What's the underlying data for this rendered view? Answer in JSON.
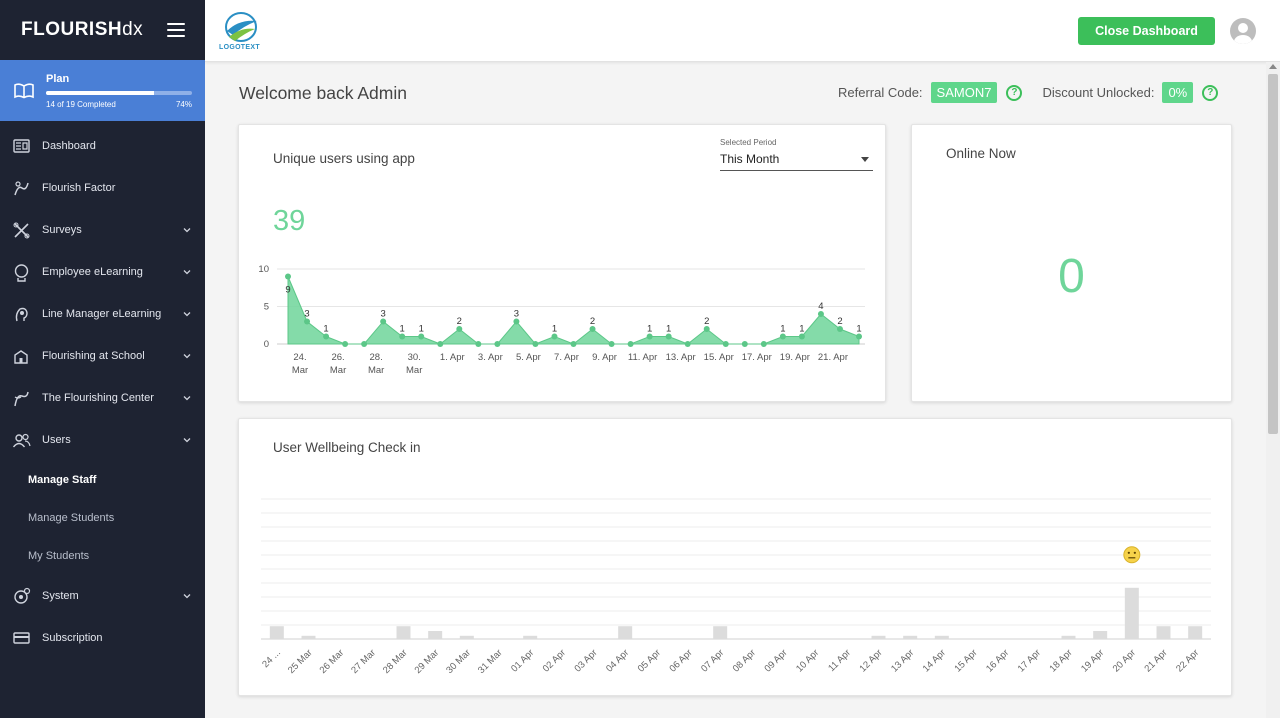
{
  "brand": {
    "name_bold": "FLOURISH",
    "name_light": "dx"
  },
  "plan": {
    "title": "Plan",
    "progress_text": "14 of 19 Completed",
    "percent_text": "74%",
    "percent": 74
  },
  "nav": {
    "items": [
      {
        "label": "Dashboard",
        "icon": "dashboard-icon",
        "expandable": false
      },
      {
        "label": "Flourish Factor",
        "icon": "flourish-icon",
        "expandable": false
      },
      {
        "label": "Surveys",
        "icon": "surveys-icon",
        "expandable": true
      },
      {
        "label": "Employee eLearning",
        "icon": "elearning-icon",
        "expandable": true
      },
      {
        "label": "Line Manager eLearning",
        "icon": "manager-icon",
        "expandable": true
      },
      {
        "label": "Flourishing at School",
        "icon": "school-icon",
        "expandable": true
      },
      {
        "label": "The Flourishing Center",
        "icon": "center-icon",
        "expandable": true
      },
      {
        "label": "Users",
        "icon": "users-icon",
        "expandable": true
      }
    ],
    "users_sub": [
      "Manage Staff",
      "Manage Students",
      "My Students"
    ],
    "after": [
      {
        "label": "System",
        "icon": "system-icon",
        "expandable": true
      },
      {
        "label": "Subscription",
        "icon": "subscription-icon",
        "expandable": false
      }
    ]
  },
  "topbar": {
    "logo_text": "LOGOTEXT",
    "close_label": "Close Dashboard"
  },
  "header": {
    "welcome": "Welcome back Admin",
    "referral_label": "Referral Code:",
    "referral_code": "SAMON7",
    "discount_label": "Discount Unlocked:",
    "discount_value": "0%",
    "help_glyph": "?"
  },
  "users_card": {
    "title": "Unique users using app",
    "period_label": "Selected Period",
    "period_value": "This Month",
    "total": "39"
  },
  "online_card": {
    "title": "Online Now",
    "count": "0"
  },
  "wellbeing_card": {
    "title": "User Wellbeing Check in"
  },
  "colors": {
    "accent": "#3cbf5a",
    "chart": "#6fd59a",
    "sidebar": "#1e2332",
    "plan": "#4a7fd6"
  },
  "chart_data": [
    {
      "type": "area",
      "title": "Unique users using app",
      "ylim": [
        0,
        10
      ],
      "yticks": [
        0,
        5,
        10
      ],
      "x_tick_labels": [
        "24. Mar",
        "26. Mar",
        "28. Mar",
        "30. Mar",
        "1. Apr",
        "3. Apr",
        "5. Apr",
        "7. Apr",
        "9. Apr",
        "11. Apr",
        "13. Apr",
        "15. Apr",
        "17. Apr",
        "19. Apr",
        "21. Apr"
      ],
      "values": [
        9,
        3,
        1,
        0,
        0,
        3,
        1,
        1,
        0,
        2,
        0,
        0,
        3,
        0,
        1,
        0,
        2,
        0,
        0,
        1,
        1,
        0,
        2,
        0,
        0,
        0,
        1,
        1,
        4,
        2,
        1
      ]
    },
    {
      "type": "bar",
      "title": "User Wellbeing Check in",
      "categories": [
        "24 ...",
        "25 Mar",
        "26 Mar",
        "27 Mar",
        "28 Mar",
        "29 Mar",
        "30 Mar",
        "31 Mar",
        "01 Apr",
        "02 Apr",
        "03 Apr",
        "04 Apr",
        "05 Apr",
        "06 Apr",
        "07 Apr",
        "08 Apr",
        "09 Apr",
        "10 Apr",
        "11 Apr",
        "12 Apr",
        "13 Apr",
        "14 Apr",
        "15 Apr",
        "16 Apr",
        "17 Apr",
        "18 Apr",
        "19 Apr",
        "20 Apr",
        "21 Apr",
        "22 Apr"
      ],
      "values": [
        0.8,
        0.2,
        0,
        0,
        0.8,
        0.5,
        0.2,
        0,
        0.2,
        0,
        0,
        0.8,
        0,
        0,
        0.8,
        0,
        0,
        0,
        0,
        0.2,
        0.2,
        0.2,
        0,
        0,
        0,
        0.2,
        0.5,
        3.2,
        0.8,
        0.8
      ],
      "marker": {
        "category": "20 Apr",
        "icon": "neutral-face-icon"
      }
    }
  ]
}
